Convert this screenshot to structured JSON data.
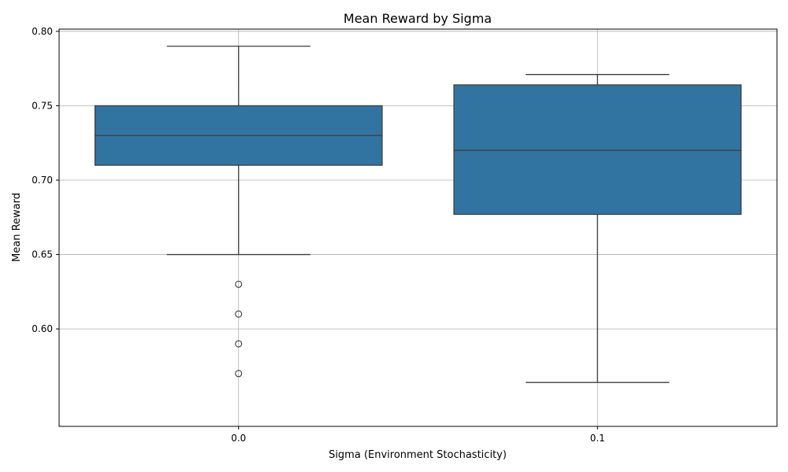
{
  "chart_data": {
    "type": "boxplot",
    "title": "Mean Reward by Sigma",
    "xlabel": "Sigma (Environment Stochasticity)",
    "ylabel": "Mean Reward",
    "categories": [
      "0.0",
      "0.1"
    ],
    "ylim": [
      0.5345,
      0.8015
    ],
    "yticks": [
      0.6,
      0.65,
      0.7,
      0.75,
      0.8
    ],
    "ytick_labels": [
      "0.60",
      "0.65",
      "0.70",
      "0.75",
      "0.80"
    ],
    "grid": true,
    "box_color": "#3274a1",
    "boxes": [
      {
        "category": "0.0",
        "whisker_low": 0.65,
        "q1": 0.71,
        "median": 0.73,
        "q3": 0.75,
        "whisker_high": 0.79,
        "outliers": [
          0.63,
          0.61,
          0.59,
          0.57
        ]
      },
      {
        "category": "0.1",
        "whisker_low": 0.564,
        "q1": 0.677,
        "median": 0.72,
        "q3": 0.764,
        "whisker_high": 0.771,
        "outliers": []
      }
    ]
  }
}
